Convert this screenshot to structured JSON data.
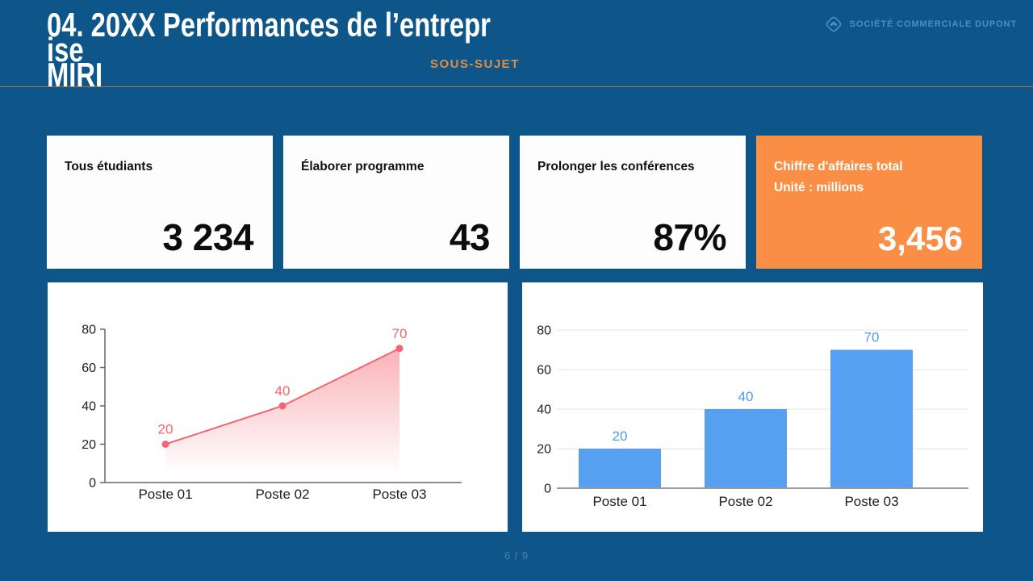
{
  "header": {
    "title_line1": "04. 20XX Performances de l’entrepr",
    "title_line2": "ise",
    "title_line3": "MIRI",
    "subtitle": "SOUS-SUJET",
    "logo_text": "SOCIÉTÉ COMMERCIALE DUPONT",
    "logo_icon": "diamond-chevron-icon"
  },
  "colors": {
    "background_blue": "#0e568a",
    "accent_orange": "#f98e44",
    "divider_tan": "#a87843",
    "logo_blue": "#4a8fc0",
    "line_series_pink": "#f5646f",
    "bar_series_blue": "#55a0f0"
  },
  "stat_cards": [
    {
      "label": "Tous étudiants",
      "value": "3 234",
      "variant": "white"
    },
    {
      "label": "Élaborer programme",
      "value": "43",
      "variant": "white"
    },
    {
      "label": "Prolonger les conférences",
      "value": "87%",
      "variant": "white"
    },
    {
      "label_line1": "Chiffre d'affaires total",
      "label_line2": "Unité : millions",
      "value": "3,456",
      "variant": "orange"
    }
  ],
  "chart_data": [
    {
      "type": "area",
      "categories": [
        "Poste 01",
        "Poste 02",
        "Poste 03"
      ],
      "values": [
        20,
        40,
        70
      ],
      "yticks": [
        0,
        20,
        40,
        60,
        80
      ],
      "ylim": [
        0,
        80
      ],
      "series_color": "#f5646f",
      "data_labels": [
        20,
        40,
        70
      ],
      "grid": false,
      "legend": "none",
      "title": "",
      "xlabel": "",
      "ylabel": ""
    },
    {
      "type": "bar",
      "categories": [
        "Poste 01",
        "Poste 02",
        "Poste 03"
      ],
      "values": [
        20,
        40,
        70
      ],
      "yticks": [
        0,
        20,
        40,
        60,
        80
      ],
      "ylim": [
        0,
        80
      ],
      "series_color": "#55a0f0",
      "data_labels": [
        20,
        40,
        70
      ],
      "grid": true,
      "legend": "none",
      "title": "",
      "xlabel": "",
      "ylabel": ""
    }
  ],
  "footer": {
    "page_indicator": "6 / 9"
  }
}
